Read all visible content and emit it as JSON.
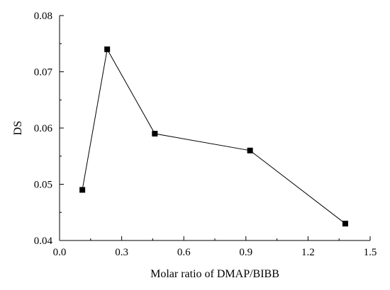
{
  "chart_data": {
    "type": "line",
    "xlabel": "Molar ratio of DMAP/BIBB",
    "ylabel": "DS",
    "xlim": [
      0.0,
      1.5
    ],
    "ylim": [
      0.04,
      0.08
    ],
    "x_ticks": [
      "0.0",
      "0.3",
      "0.6",
      "0.9",
      "1.2",
      "1.5"
    ],
    "y_ticks": [
      "0.04",
      "0.05",
      "0.06",
      "0.07",
      "0.08"
    ],
    "grid": false,
    "series": [
      {
        "color": "#000000",
        "marker": "square",
        "x": [
          0.11,
          0.23,
          0.46,
          0.92,
          1.38
        ],
        "y": [
          0.049,
          0.074,
          0.059,
          0.056,
          0.043
        ]
      }
    ]
  }
}
